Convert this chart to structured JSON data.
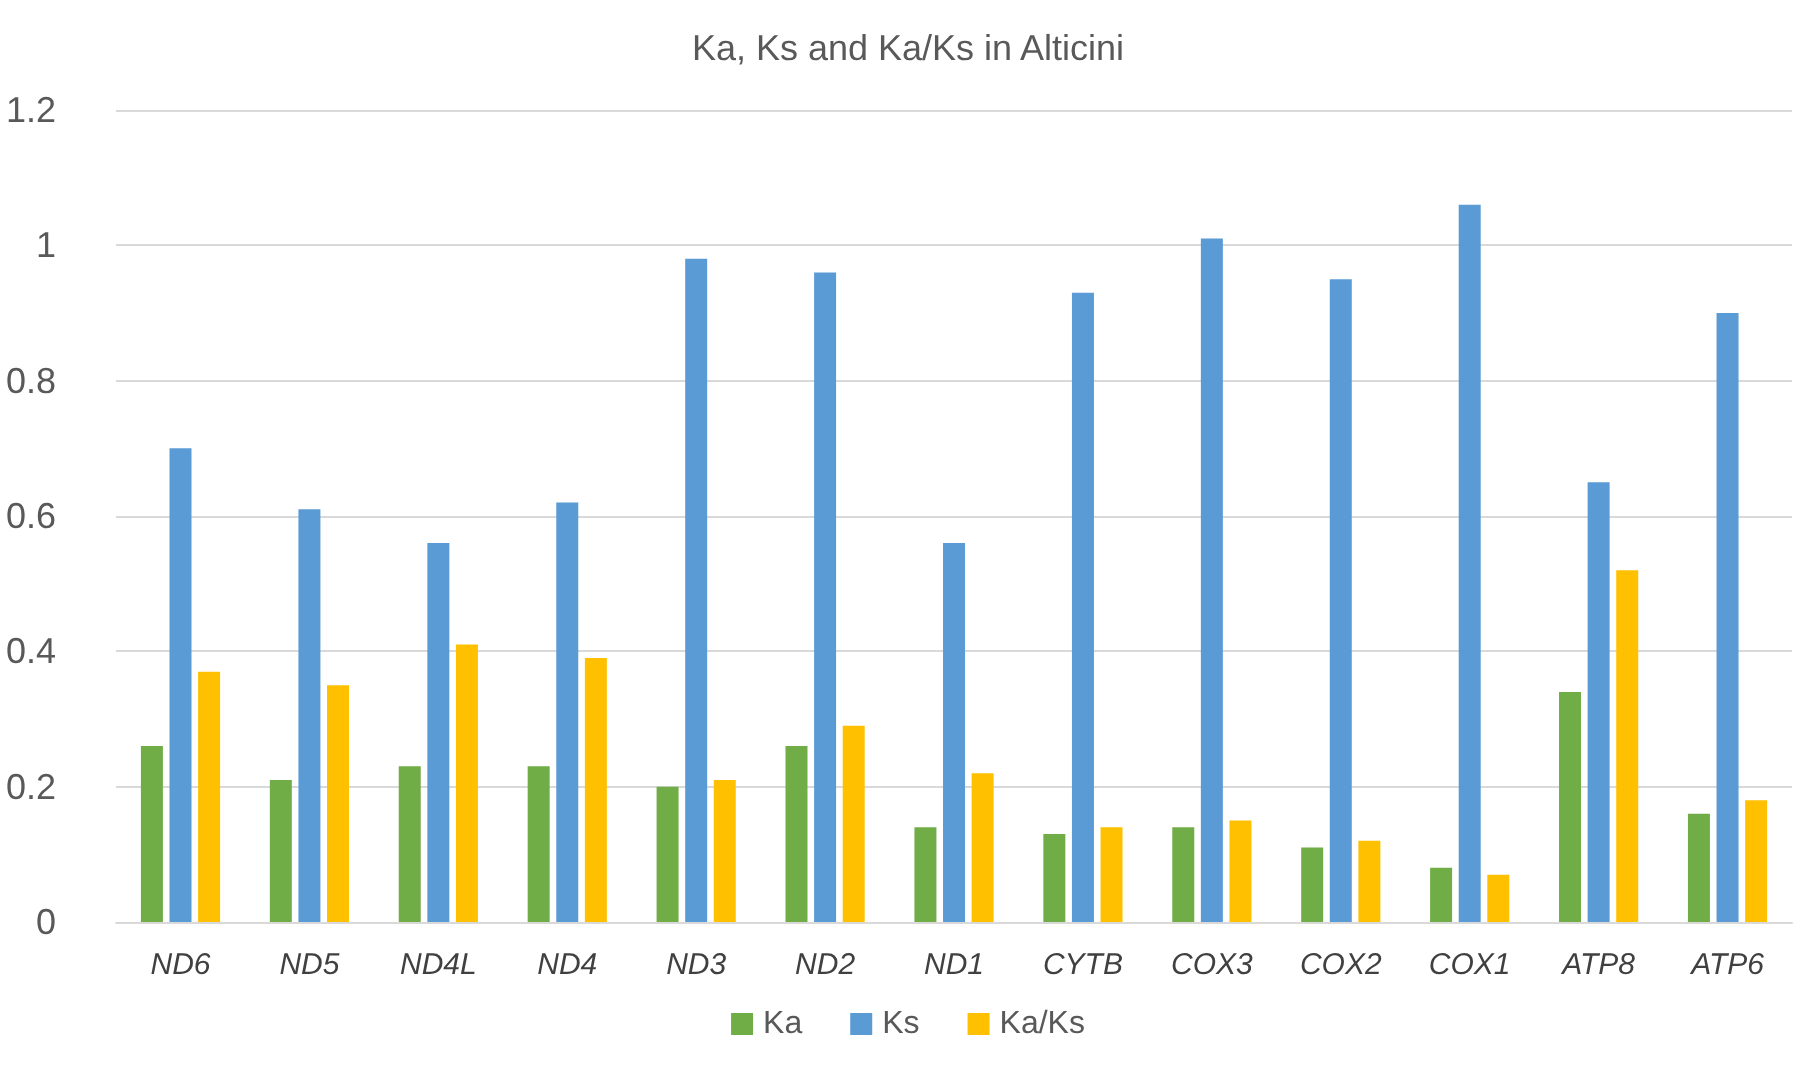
{
  "chart_data": {
    "type": "bar",
    "title": "Ka, Ks and Ka/Ks in Alticini",
    "categories": [
      "ND6",
      "ND5",
      "ND4L",
      "ND4",
      "ND3",
      "ND2",
      "ND1",
      "CYTB",
      "COX3",
      "COX2",
      "COX1",
      "ATP8",
      "ATP6"
    ],
    "series": [
      {
        "name": "Ka",
        "color": "#70ad47",
        "values": [
          0.26,
          0.21,
          0.23,
          0.23,
          0.2,
          0.26,
          0.14,
          0.13,
          0.14,
          0.11,
          0.08,
          0.34,
          0.16
        ]
      },
      {
        "name": "Ks",
        "color": "#5b9bd5",
        "values": [
          0.7,
          0.61,
          0.56,
          0.62,
          0.98,
          0.96,
          0.56,
          0.93,
          1.01,
          0.95,
          1.06,
          0.65,
          0.9
        ]
      },
      {
        "name": "Ka/Ks",
        "color": "#ffc000",
        "values": [
          0.37,
          0.35,
          0.41,
          0.39,
          0.21,
          0.29,
          0.22,
          0.14,
          0.15,
          0.12,
          0.07,
          0.52,
          0.18
        ]
      }
    ],
    "ylim": [
      0,
      1.2
    ],
    "yticks": [
      0,
      0.2,
      0.4,
      0.6,
      0.8,
      1,
      1.2
    ],
    "grid": "y",
    "legend": "bottom"
  }
}
